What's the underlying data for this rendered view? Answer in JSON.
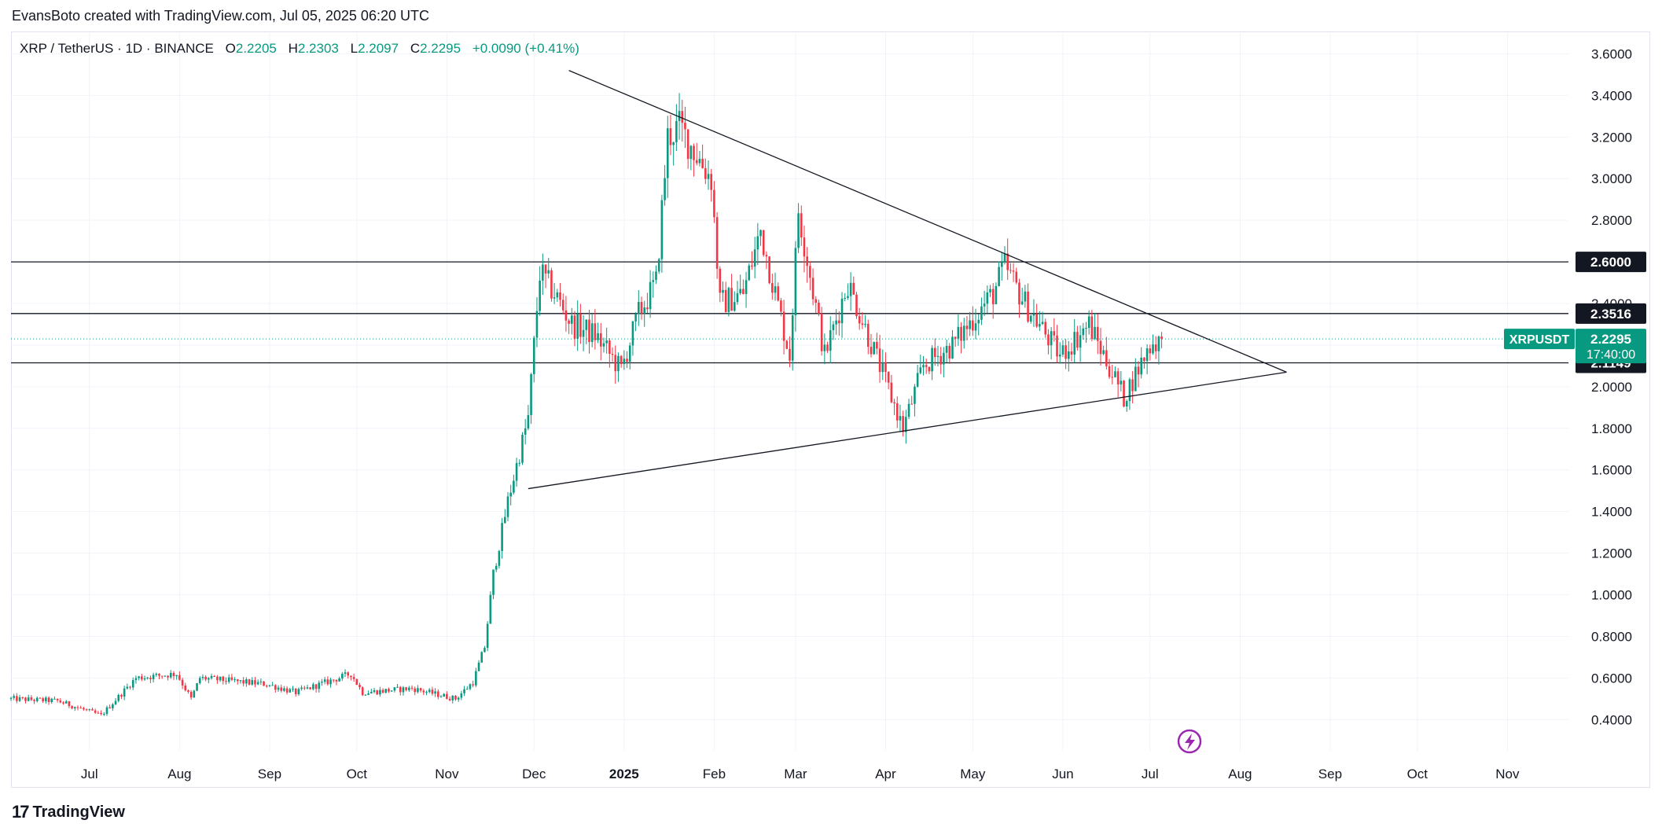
{
  "header": {
    "credit": "EvansBoto created with TradingView.com, Jul 05, 2025 06:20 UTC"
  },
  "legend": {
    "symbol": "XRP / TetherUS · 1D · BINANCE",
    "o_label": "O",
    "o_value": "2.2205",
    "h_label": "H",
    "h_value": "2.2303",
    "l_label": "L",
    "l_value": "2.2097",
    "c_label": "C",
    "c_value": "2.2295",
    "change": "+0.0090 (+0.41%)"
  },
  "price_label": {
    "symbol": "XRPUSDT",
    "price": "2.2295",
    "countdown": "17:40:00"
  },
  "brand": {
    "logo": "17",
    "name": "TradingView"
  },
  "colors": {
    "up": "#089981",
    "down": "#f23645",
    "line": "#131722",
    "grid": "#f0f3fa",
    "text": "#131722"
  },
  "icons": [
    "lightning-icon",
    "tradingview-logo-icon"
  ],
  "chart_data": {
    "type": "candlestick",
    "symbol": "XRPUSDT",
    "interval": "1D",
    "exchange": "BINANCE",
    "y_axis": {
      "scale": "linear",
      "range": [
        0.25,
        3.7
      ],
      "ticks": [
        "0.4000",
        "0.6000",
        "0.8000",
        "1.0000",
        "1.2000",
        "1.4000",
        "1.6000",
        "1.8000",
        "2.0000",
        "2.2000",
        "2.4000",
        "2.6000",
        "2.8000",
        "3.0000",
        "3.2000",
        "3.4000",
        "3.6000"
      ]
    },
    "x_axis": {
      "range": [
        "2024-06-04",
        "2025-11-22"
      ],
      "ticks": [
        {
          "date": "2024-07-01",
          "label": "Jul"
        },
        {
          "date": "2024-08-01",
          "label": "Aug"
        },
        {
          "date": "2024-09-01",
          "label": "Sep"
        },
        {
          "date": "2024-10-01",
          "label": "Oct"
        },
        {
          "date": "2024-11-01",
          "label": "Nov"
        },
        {
          "date": "2024-12-01",
          "label": "Dec"
        },
        {
          "date": "2025-01-01",
          "label": "2025",
          "bold": true
        },
        {
          "date": "2025-02-01",
          "label": "Feb"
        },
        {
          "date": "2025-03-01",
          "label": "Mar"
        },
        {
          "date": "2025-04-01",
          "label": "Apr"
        },
        {
          "date": "2025-05-01",
          "label": "May"
        },
        {
          "date": "2025-06-01",
          "label": "Jun"
        },
        {
          "date": "2025-07-01",
          "label": "Jul"
        },
        {
          "date": "2025-08-01",
          "label": "Aug"
        },
        {
          "date": "2025-09-01",
          "label": "Sep"
        },
        {
          "date": "2025-10-01",
          "label": "Oct"
        },
        {
          "date": "2025-11-01",
          "label": "Nov"
        }
      ]
    },
    "grid": true,
    "last_price": 2.2295,
    "horizontal_levels": [
      {
        "value": 2.6,
        "label": "2.6000"
      },
      {
        "value": 2.3516,
        "label": "2.3516"
      },
      {
        "value": 2.1149,
        "label": "2.1149"
      }
    ],
    "trendlines": [
      {
        "from": {
          "date": "2024-12-13",
          "price": 3.52
        },
        "to": {
          "date": "2025-08-17",
          "price": 2.07
        }
      },
      {
        "from": {
          "date": "2024-11-29",
          "price": 1.51
        },
        "to": {
          "date": "2025-08-17",
          "price": 2.07
        }
      }
    ],
    "price_path": [
      {
        "date": "2024-06-04",
        "price": 0.5
      },
      {
        "date": "2024-06-20",
        "price": 0.49
      },
      {
        "date": "2024-07-05",
        "price": 0.42
      },
      {
        "date": "2024-07-17",
        "price": 0.6
      },
      {
        "date": "2024-07-31",
        "price": 0.62
      },
      {
        "date": "2024-08-05",
        "price": 0.5
      },
      {
        "date": "2024-08-08",
        "price": 0.6
      },
      {
        "date": "2024-08-31",
        "price": 0.57
      },
      {
        "date": "2024-09-10",
        "price": 0.53
      },
      {
        "date": "2024-09-29",
        "price": 0.62
      },
      {
        "date": "2024-10-03",
        "price": 0.53
      },
      {
        "date": "2024-10-20",
        "price": 0.55
      },
      {
        "date": "2024-11-04",
        "price": 0.5
      },
      {
        "date": "2024-11-10",
        "price": 0.58
      },
      {
        "date": "2024-11-14",
        "price": 0.75
      },
      {
        "date": "2024-11-17",
        "price": 1.1
      },
      {
        "date": "2024-11-22",
        "price": 1.45
      },
      {
        "date": "2024-11-29",
        "price": 1.85
      },
      {
        "date": "2024-12-03",
        "price": 2.55
      },
      {
        "date": "2024-12-08",
        "price": 2.45
      },
      {
        "date": "2024-12-14",
        "price": 2.3
      },
      {
        "date": "2024-12-22",
        "price": 2.25
      },
      {
        "date": "2024-12-31",
        "price": 2.08
      },
      {
        "date": "2025-01-06",
        "price": 2.35
      },
      {
        "date": "2025-01-12",
        "price": 2.5
      },
      {
        "date": "2025-01-16",
        "price": 3.2
      },
      {
        "date": "2025-01-20",
        "price": 3.25
      },
      {
        "date": "2025-01-31",
        "price": 3.0
      },
      {
        "date": "2025-02-03",
        "price": 2.4
      },
      {
        "date": "2025-02-11",
        "price": 2.45
      },
      {
        "date": "2025-02-17",
        "price": 2.75
      },
      {
        "date": "2025-02-27",
        "price": 2.15
      },
      {
        "date": "2025-03-02",
        "price": 2.85
      },
      {
        "date": "2025-03-11",
        "price": 2.15
      },
      {
        "date": "2025-03-19",
        "price": 2.5
      },
      {
        "date": "2025-03-30",
        "price": 2.1
      },
      {
        "date": "2025-04-07",
        "price": 1.8
      },
      {
        "date": "2025-04-14",
        "price": 2.1
      },
      {
        "date": "2025-04-24",
        "price": 2.2
      },
      {
        "date": "2025-05-08",
        "price": 2.45
      },
      {
        "date": "2025-05-12",
        "price": 2.58
      },
      {
        "date": "2025-05-19",
        "price": 2.4
      },
      {
        "date": "2025-05-31",
        "price": 2.15
      },
      {
        "date": "2025-06-10",
        "price": 2.3
      },
      {
        "date": "2025-06-22",
        "price": 1.95
      },
      {
        "date": "2025-07-01",
        "price": 2.2
      },
      {
        "date": "2025-07-05",
        "price": 2.2295
      }
    ]
  }
}
